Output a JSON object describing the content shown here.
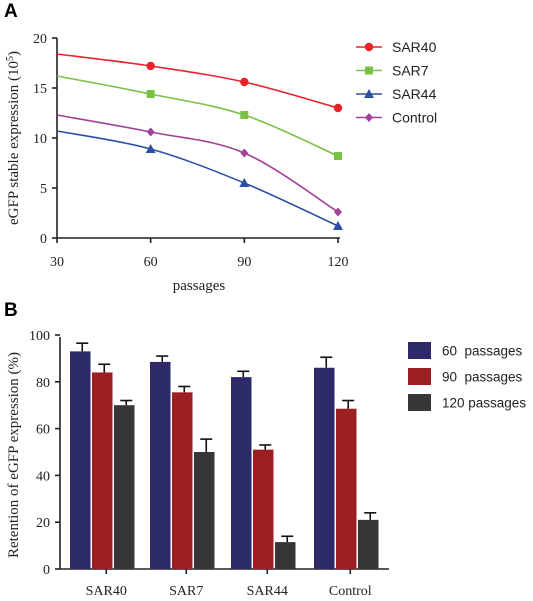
{
  "chart_data": [
    {
      "panel": "A",
      "type": "line",
      "xlabel": "passages",
      "ylabel": "eGFP stable expression (10",
      "ylabel_sup": "5",
      "ylabel_close": ")",
      "x": [
        30,
        60,
        90,
        120
      ],
      "xticks": [
        "30",
        "60",
        "90",
        "120"
      ],
      "yticks": [
        "0",
        "5",
        "10",
        "15",
        "20"
      ],
      "xlim": [
        30,
        120
      ],
      "ylim": [
        0,
        20
      ],
      "grid": false,
      "legend_position": "top-right",
      "series": [
        {
          "name": "SAR40",
          "color": "#e8232a",
          "marker": "circle",
          "values": [
            18.4,
            17.2,
            15.6,
            13.0
          ]
        },
        {
          "name": "SAR7",
          "color": "#7ac143",
          "marker": "square",
          "values": [
            16.2,
            14.4,
            12.3,
            8.2
          ]
        },
        {
          "name": "SAR44",
          "color": "#2c4fa3",
          "marker": "triangle",
          "values": [
            10.7,
            8.9,
            5.5,
            1.2
          ]
        },
        {
          "name": "Control",
          "color": "#a2419a",
          "marker": "diamond",
          "values": [
            12.3,
            10.6,
            8.5,
            2.6
          ]
        }
      ]
    },
    {
      "panel": "B",
      "type": "bar",
      "xlabel": "",
      "ylabel": "Retention of eGFP expression (%)",
      "categories": [
        "SAR40",
        "SAR7",
        "SAR44",
        "Control"
      ],
      "yticks": [
        "0",
        "20",
        "40",
        "60",
        "80",
        "100"
      ],
      "ylim": [
        0,
        100
      ],
      "grid": false,
      "legend_position": "right",
      "series": [
        {
          "name": "60  passages",
          "color": "#2c2a68",
          "values": [
            93,
            88.5,
            82,
            86
          ],
          "errors": [
            3.5,
            2.5,
            2.5,
            4.5
          ]
        },
        {
          "name": "90  passages",
          "color": "#9b1f23",
          "values": [
            84,
            75.5,
            51,
            68.5
          ],
          "errors": [
            3.5,
            2.5,
            2.0,
            3.5
          ]
        },
        {
          "name": "120 passages",
          "color": "#363636",
          "values": [
            70,
            50,
            11.5,
            21
          ],
          "errors": [
            2.0,
            5.5,
            2.5,
            3.0
          ]
        }
      ]
    }
  ]
}
